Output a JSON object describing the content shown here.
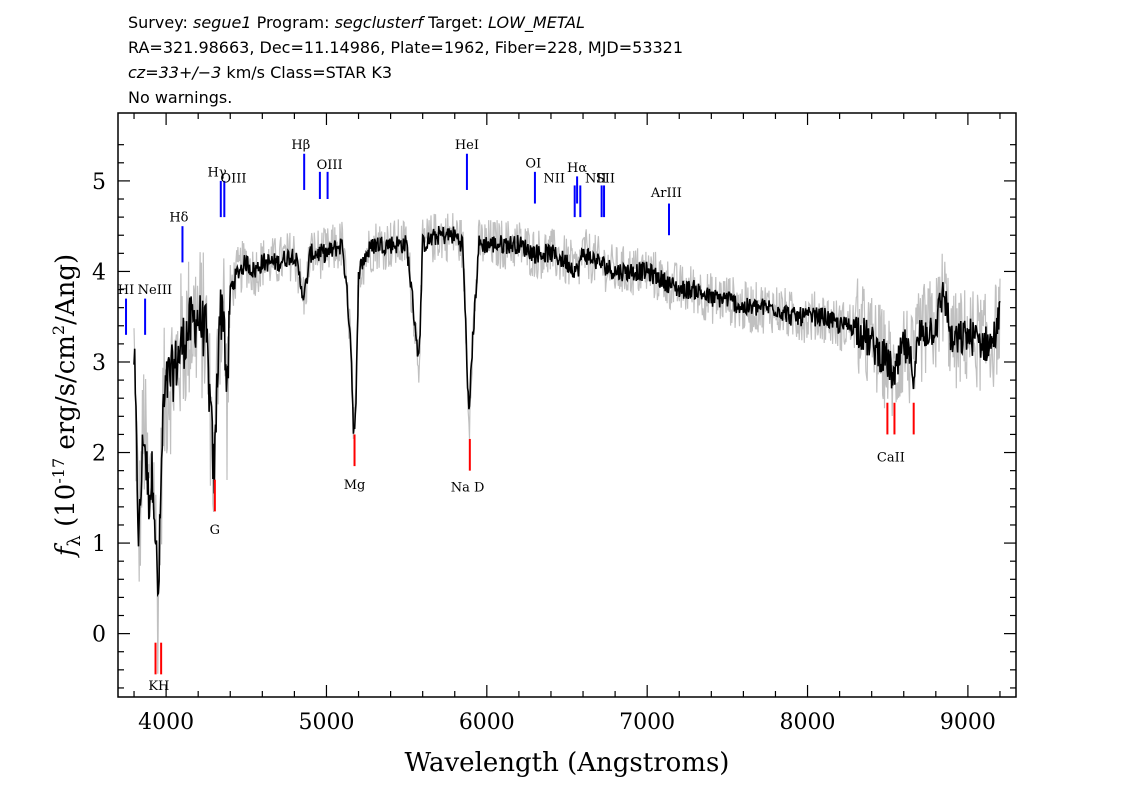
{
  "header": {
    "survey_label": "Survey:",
    "survey": "segue1",
    "program_label": "Program:",
    "program": "segclusterf",
    "target_label": "Target:",
    "target": "LOW_METAL",
    "line2": "RA=321.98663, Dec=11.14986, Plate=1962, Fiber=228, MJD=53321",
    "cz": "cz=33+/−3",
    "cz_rest": " km/s Class=STAR K3",
    "warnings": "No warnings."
  },
  "chart_data": {
    "type": "line",
    "title": "",
    "xlabel": "Wavelength (Angstroms)",
    "ylabel": "f_λ (10^-17 erg/s/cm^2/Ang)",
    "xlim": [
      3700,
      9300
    ],
    "ylim": [
      -0.7,
      5.75
    ],
    "xticks": [
      4000,
      5000,
      6000,
      7000,
      8000,
      9000
    ],
    "yticks": [
      0,
      1,
      2,
      3,
      4,
      5
    ],
    "grid": false,
    "colors": {
      "flux": "#000000",
      "noise_band": "#c0c0c0",
      "emission": "#0000ff",
      "absorption": "#ff0000"
    },
    "series": [
      {
        "role": "flux",
        "x": [
          3800,
          3830,
          3860,
          3890,
          3920,
          3950,
          3980,
          4010,
          4050,
          4100,
          4150,
          4200,
          4250,
          4300,
          4330,
          4360,
          4380,
          4400,
          4450,
          4500,
          4550,
          4600,
          4700,
          4800,
          4861,
          4900,
          5000,
          5100,
          5150,
          5170,
          5183,
          5200,
          5250,
          5300,
          5400,
          5500,
          5577,
          5600,
          5700,
          5800,
          5850,
          5890,
          5900,
          5950,
          6000,
          6100,
          6200,
          6300,
          6400,
          6500,
          6563,
          6600,
          6700,
          6800,
          6900,
          7000,
          7100,
          7200,
          7300,
          7400,
          7500,
          7600,
          7700,
          7800,
          7900,
          8000,
          8100,
          8200,
          8300,
          8400,
          8500,
          8542,
          8600,
          8662,
          8700,
          8800,
          8850,
          8900,
          9000,
          9100,
          9150,
          9200
        ],
        "y": [
          3.1,
          1.0,
          2.3,
          1.5,
          1.8,
          0.3,
          2.4,
          2.8,
          2.9,
          3.2,
          3.4,
          3.5,
          3.3,
          1.7,
          3.5,
          3.6,
          2.5,
          3.8,
          4.0,
          4.1,
          4.0,
          4.1,
          4.1,
          4.2,
          3.7,
          4.2,
          4.2,
          4.3,
          3.3,
          2.2,
          2.4,
          4.0,
          4.2,
          4.3,
          4.3,
          4.3,
          3.0,
          4.3,
          4.4,
          4.4,
          4.3,
          2.3,
          2.9,
          4.3,
          4.3,
          4.3,
          4.3,
          4.2,
          4.2,
          4.1,
          4.0,
          4.2,
          4.1,
          4.0,
          4.0,
          4.0,
          3.9,
          3.8,
          3.8,
          3.7,
          3.7,
          3.6,
          3.6,
          3.6,
          3.5,
          3.5,
          3.5,
          3.4,
          3.4,
          3.2,
          3.0,
          2.8,
          3.2,
          2.9,
          3.3,
          3.4,
          3.8,
          3.2,
          3.3,
          3.2,
          3.2,
          3.5
        ]
      }
    ],
    "emission_lines": [
      {
        "label": "HI",
        "x": 3750,
        "y": [
          3.3,
          3.7
        ]
      },
      {
        "label": "NeIII",
        "x": 3869,
        "y": [
          3.3,
          3.7
        ]
      },
      {
        "label": "Hδ",
        "x": 4102,
        "y": [
          4.1,
          4.5
        ]
      },
      {
        "label": "Hγ",
        "x": 4341,
        "y": [
          4.6,
          5.0
        ]
      },
      {
        "label": "OIII",
        "x": 4363,
        "y": [
          4.6,
          5.0
        ]
      },
      {
        "label": "Hβ",
        "x": 4861,
        "y": [
          4.9,
          5.3
        ]
      },
      {
        "label": "OIII",
        "x": 4959,
        "y": [
          4.8,
          5.1
        ]
      },
      {
        "label": "OIII",
        "x": 5007,
        "y": [
          4.8,
          5.1
        ]
      },
      {
        "label": "HeI",
        "x": 5876,
        "y": [
          4.9,
          5.3
        ]
      },
      {
        "label": "OI",
        "x": 6300,
        "y": [
          4.75,
          5.1
        ]
      },
      {
        "label": "NII",
        "x": 6548,
        "y": [
          4.6,
          4.95
        ]
      },
      {
        "label": "Hα",
        "x": 6563,
        "y": [
          4.75,
          5.05
        ]
      },
      {
        "label": "NII",
        "x": 6583,
        "y": [
          4.6,
          4.95
        ]
      },
      {
        "label": "SII",
        "x": 6716,
        "y": [
          4.6,
          4.95
        ]
      },
      {
        "label": "SII",
        "x": 6731,
        "y": [
          4.6,
          4.95
        ]
      },
      {
        "label": "ArIII",
        "x": 7136,
        "y": [
          4.4,
          4.75
        ]
      }
    ],
    "absorption_lines": [
      {
        "label": "K",
        "x": 3934,
        "y": [
          -0.45,
          -0.1
        ]
      },
      {
        "label": "H",
        "x": 3969,
        "y": [
          -0.45,
          -0.1
        ]
      },
      {
        "label": "G",
        "x": 4304,
        "y": [
          1.35,
          1.7
        ]
      },
      {
        "label": "Mg",
        "x": 5175,
        "y": [
          1.85,
          2.2
        ]
      },
      {
        "label": "Na D",
        "x": 5894,
        "y": [
          1.8,
          2.15
        ]
      },
      {
        "label": "CaII",
        "x": 8498,
        "y": [
          2.2,
          2.55
        ]
      },
      {
        "label": "CaII",
        "x": 8542,
        "y": [
          2.2,
          2.55
        ]
      },
      {
        "label": "CaII",
        "x": 8662,
        "y": [
          2.2,
          2.55
        ]
      }
    ],
    "line_labels": [
      {
        "text": "HI",
        "x": 3750,
        "y": 3.75,
        "kind": "emission"
      },
      {
        "text": "NeIII",
        "x": 3930,
        "y": 3.75,
        "kind": "emission"
      },
      {
        "text": "Hδ",
        "x": 4080,
        "y": 4.55,
        "kind": "emission"
      },
      {
        "text": "Hγ",
        "x": 4318,
        "y": 5.05,
        "kind": "emission"
      },
      {
        "text": "OIII",
        "x": 4420,
        "y": 4.98,
        "kind": "emission"
      },
      {
        "text": "Hβ",
        "x": 4840,
        "y": 5.35,
        "kind": "emission"
      },
      {
        "text": "OIII",
        "x": 5020,
        "y": 5.13,
        "kind": "emission"
      },
      {
        "text": "HeI",
        "x": 5876,
        "y": 5.35,
        "kind": "emission"
      },
      {
        "text": "OI",
        "x": 6290,
        "y": 5.15,
        "kind": "emission"
      },
      {
        "text": "NII",
        "x": 6420,
        "y": 4.98,
        "kind": "emission"
      },
      {
        "text": "Hα",
        "x": 6563,
        "y": 5.1,
        "kind": "emission"
      },
      {
        "text": "NII",
        "x": 6680,
        "y": 4.98,
        "kind": "emission"
      },
      {
        "text": "SII",
        "x": 6740,
        "y": 4.98,
        "kind": "emission"
      },
      {
        "text": "ArIII",
        "x": 7120,
        "y": 4.82,
        "kind": "emission"
      },
      {
        "text": "K",
        "x": 3920,
        "y": -0.62,
        "kind": "absorption"
      },
      {
        "text": "H",
        "x": 3985,
        "y": -0.62,
        "kind": "absorption"
      },
      {
        "text": "G",
        "x": 4304,
        "y": 1.1,
        "kind": "absorption"
      },
      {
        "text": "Mg",
        "x": 5175,
        "y": 1.6,
        "kind": "absorption"
      },
      {
        "text": "Na D",
        "x": 5880,
        "y": 1.57,
        "kind": "absorption"
      },
      {
        "text": "CaII",
        "x": 8520,
        "y": 1.9,
        "kind": "absorption"
      }
    ]
  }
}
